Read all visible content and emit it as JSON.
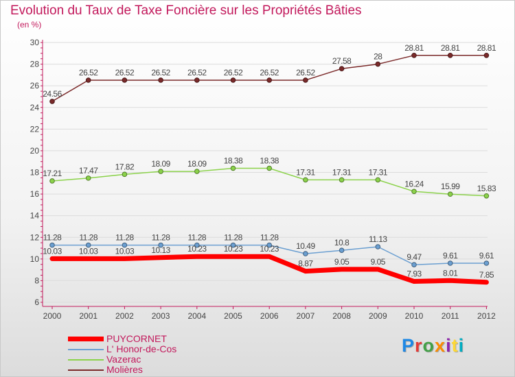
{
  "header": {
    "title": "Evolution du Taux de Taxe Foncière sur les Propriétés Bâties",
    "unit": "(en %)"
  },
  "brand": {
    "text": "Proxiti",
    "colors": [
      "#1e88e5",
      "#e53935",
      "#43a047",
      "#fb8c00",
      "#8e24aa",
      "#fdd835",
      "#00acc1"
    ]
  },
  "colors": {
    "title": "#c2185b",
    "axis": "#c2185b",
    "grid": "#dcdcdc",
    "text": "#444444"
  },
  "chart_data": {
    "type": "line",
    "title": "Evolution du Taux de Taxe Foncière sur les Propriétés Bâties",
    "ylabel": "(en %)",
    "xlabel": "",
    "ylim": [
      6,
      30
    ],
    "yticks": [
      6,
      8,
      10,
      12,
      14,
      16,
      18,
      20,
      22,
      24,
      26,
      28,
      30
    ],
    "grid": true,
    "legend_position": "bottom-left",
    "x": [
      "2000",
      "2001",
      "2002",
      "2003",
      "2004",
      "2005",
      "2006",
      "2007",
      "2008",
      "2009",
      "2010",
      "2011",
      "2012"
    ],
    "series": [
      {
        "name": "Molières",
        "color": "#7b2a2a",
        "width": 1.5,
        "values": [
          24.56,
          26.52,
          26.52,
          26.52,
          26.52,
          26.52,
          26.52,
          26.52,
          27.58,
          28,
          28.81,
          28.81,
          28.81
        ],
        "labels": [
          "24.56",
          "26.52",
          "26.52",
          "26.52",
          "26.52",
          "26.52",
          "26.52",
          "26.52",
          "27.58",
          "28",
          "28.81",
          "28.81",
          "28.81"
        ]
      },
      {
        "name": "Vazerac",
        "color": "#8bd24a",
        "width": 1.5,
        "values": [
          17.21,
          17.47,
          17.82,
          18.09,
          18.09,
          18.38,
          18.38,
          17.31,
          17.31,
          17.31,
          16.24,
          15.99,
          15.83
        ],
        "labels": [
          "17.21",
          "17.47",
          "17.82",
          "18.09",
          "18.09",
          "18.38",
          "18.38",
          "17.31",
          "17.31",
          "17.31",
          "16.24",
          "15.99",
          "15.83"
        ]
      },
      {
        "name": "L' Honor-de-Cos",
        "color": "#6b9fd1",
        "width": 1.5,
        "values": [
          11.28,
          11.28,
          11.28,
          11.28,
          11.28,
          11.28,
          11.28,
          10.49,
          10.8,
          11.13,
          9.47,
          9.61,
          9.61
        ],
        "labels": [
          "11.28",
          "11.28",
          "11.28",
          "11.28",
          "11.28",
          "11.28",
          "11.28",
          "10.49",
          "10.8",
          "11.13",
          "9.47",
          "9.61",
          "9.61"
        ]
      },
      {
        "name": "PUYCORNET",
        "color": "#ff0000",
        "width": 7,
        "values": [
          10.03,
          10.03,
          10.03,
          10.13,
          10.23,
          10.23,
          10.23,
          8.87,
          9.05,
          9.05,
          7.93,
          8.01,
          7.85
        ],
        "labels": [
          "10.03",
          "10.03",
          "10.03",
          "10.13",
          "10.23",
          "10.23",
          "10.23",
          "8.87",
          "9.05",
          "9.05",
          "7.93",
          "8.01",
          "7.85"
        ]
      }
    ],
    "legend": [
      "PUYCORNET",
      "L' Honor-de-Cos",
      "Vazerac",
      "Molières"
    ]
  }
}
